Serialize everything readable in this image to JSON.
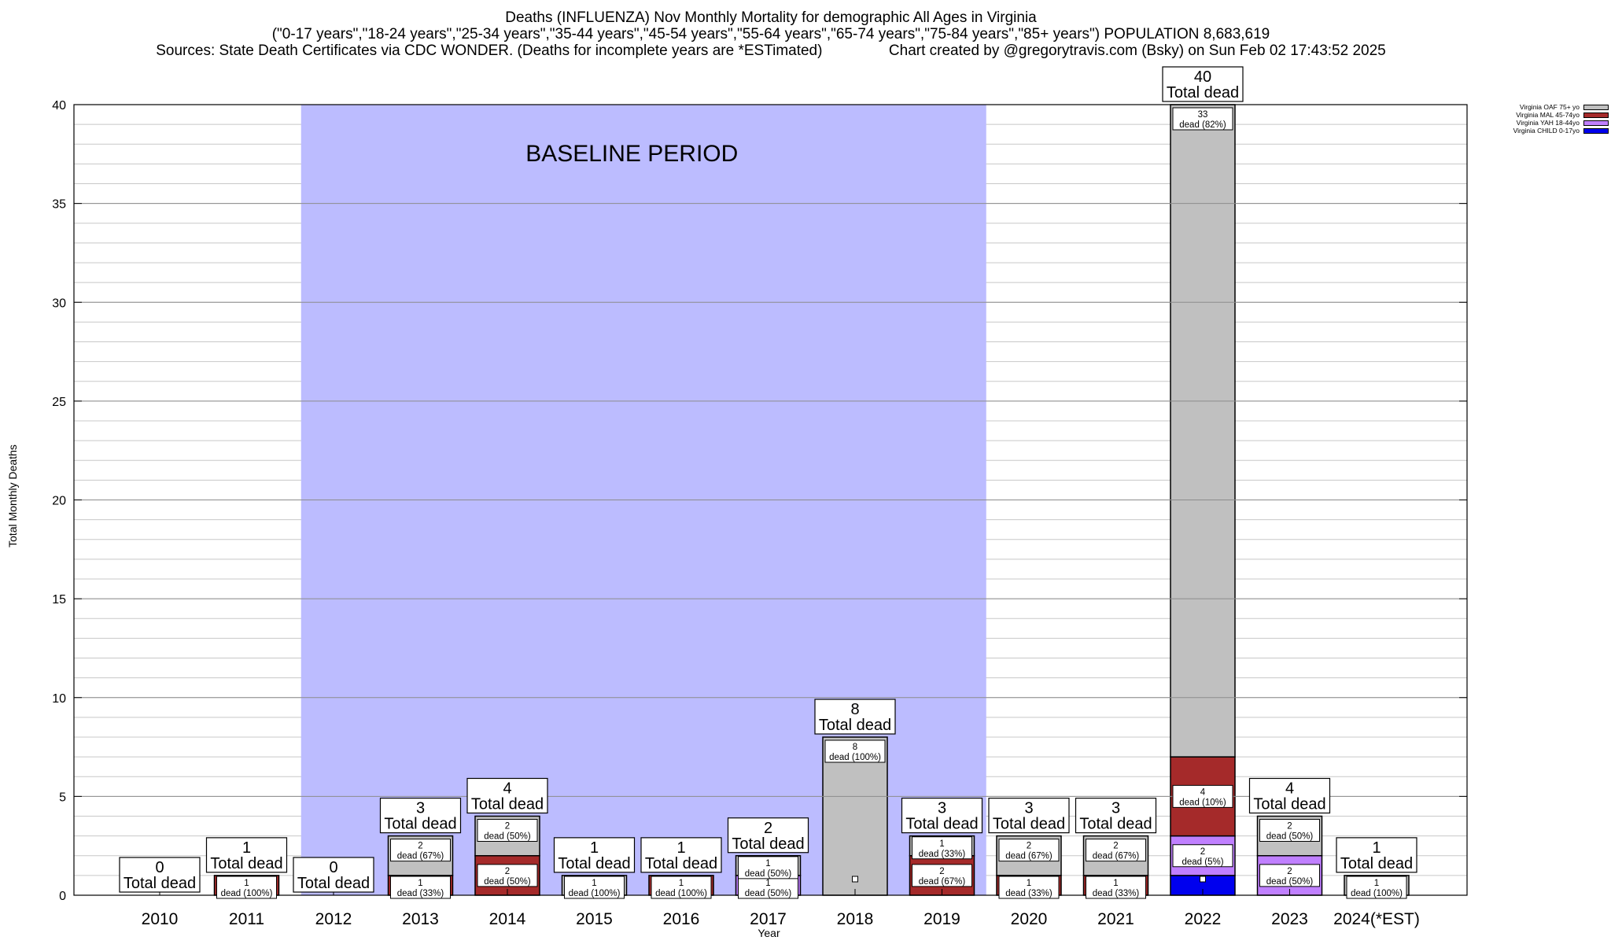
{
  "header": {
    "title": "Deaths (INFLUENZA) Nov Monthly Mortality for demographic All Ages in Virginia",
    "subtitle": "(\"0-17 years\",\"18-24 years\",\"25-34 years\",\"35-44 years\",\"45-54 years\",\"55-64 years\",\"65-74 years\",\"75-84 years\",\"85+ years\") POPULATION 8,683,619",
    "sources": "Sources: State Death Certificates via CDC WONDER. (Deaths for incomplete years are *ESTimated)                Chart created by @gregorytravis.com (Bsky) on Sun Feb 02 17:43:52 2025"
  },
  "colors": {
    "baseline": "#bcbcff",
    "OAF": "#c0c0c0",
    "MAL": "#a52a2a",
    "YAH": "#c080ff",
    "CHILD": "#0000ee"
  },
  "legend": [
    {
      "label": "Virginia OAF 75+ yo",
      "color": "#c0c0c0"
    },
    {
      "label": "Virginia MAL 45-74yo",
      "color": "#a52a2a"
    },
    {
      "label": "Virginia YAH 18-44yo",
      "color": "#c080ff"
    },
    {
      "label": "Virginia CHILD 0-17yo",
      "color": "#0000ee"
    }
  ],
  "chart_data": {
    "type": "bar",
    "stacked": true,
    "title": "Deaths (INFLUENZA) Nov Monthly Mortality for demographic All Ages in Virginia",
    "xlabel": "Year",
    "ylabel": "Total Monthly Deaths",
    "ylim": [
      0,
      40
    ],
    "yticks": [
      0,
      5,
      10,
      15,
      20,
      25,
      30,
      35,
      40
    ],
    "grid": true,
    "legend_position": "top-right",
    "baseline_label": "BASELINE PERIOD",
    "baseline_range": [
      "2012",
      "2019"
    ],
    "total_label": "Total dead",
    "categories": [
      "2010",
      "2011",
      "2012",
      "2013",
      "2014",
      "2015",
      "2016",
      "2017",
      "2018",
      "2019",
      "2020",
      "2021",
      "2022",
      "2023",
      "2024(*EST)"
    ],
    "totals": [
      0,
      1,
      0,
      3,
      4,
      1,
      1,
      2,
      8,
      3,
      3,
      3,
      40,
      4,
      1
    ],
    "series": [
      {
        "name": "Virginia CHILD 0-17yo",
        "key": "CHILD",
        "values": [
          0,
          0,
          0,
          0,
          0,
          0,
          0,
          0,
          0,
          0,
          0,
          0,
          1,
          0,
          0
        ]
      },
      {
        "name": "Virginia YAH 18-44yo",
        "key": "YAH",
        "values": [
          0,
          0,
          0,
          0,
          0,
          0,
          0,
          1,
          0,
          0,
          0,
          0,
          2,
          2,
          0
        ]
      },
      {
        "name": "Virginia MAL 45-74yo",
        "key": "MAL",
        "values": [
          0,
          1,
          0,
          1,
          2,
          0,
          1,
          0,
          0,
          2,
          1,
          1,
          4,
          0,
          0
        ]
      },
      {
        "name": "Virginia OAF 75+ yo",
        "key": "OAF",
        "values": [
          0,
          0,
          0,
          2,
          2,
          1,
          0,
          1,
          8,
          1,
          2,
          2,
          33,
          2,
          1
        ]
      }
    ],
    "segment_labels": [
      [],
      [
        {
          "series": "MAL",
          "count": "1",
          "pct": "dead (100%)"
        }
      ],
      [],
      [
        {
          "series": "MAL",
          "count": "1",
          "pct": "dead (33%)"
        },
        {
          "series": "OAF",
          "count": "2",
          "pct": "dead (67%)"
        }
      ],
      [
        {
          "series": "MAL",
          "count": "2",
          "pct": "dead (50%)"
        },
        {
          "series": "OAF",
          "count": "2",
          "pct": "dead (50%)"
        }
      ],
      [
        {
          "series": "OAF",
          "count": "1",
          "pct": "dead (100%)"
        }
      ],
      [
        {
          "series": "MAL",
          "count": "1",
          "pct": "dead (100%)"
        }
      ],
      [
        {
          "series": "YAH",
          "count": "1",
          "pct": "dead (50%)"
        },
        {
          "series": "OAF",
          "count": "1",
          "pct": "dead (50%)"
        }
      ],
      [
        {
          "series": "OAF",
          "count": "8",
          "pct": "dead (100%)"
        }
      ],
      [
        {
          "series": "MAL",
          "count": "2",
          "pct": "dead (67%)"
        },
        {
          "series": "OAF",
          "count": "1",
          "pct": "dead (33%)"
        }
      ],
      [
        {
          "series": "MAL",
          "count": "1",
          "pct": "dead (33%)"
        },
        {
          "series": "OAF",
          "count": "2",
          "pct": "dead (67%)"
        }
      ],
      [
        {
          "series": "MAL",
          "count": "1",
          "pct": "dead (33%)"
        },
        {
          "series": "OAF",
          "count": "2",
          "pct": "dead (67%)"
        }
      ],
      [
        {
          "series": "YAH",
          "count": "2",
          "pct": "dead (5%)"
        },
        {
          "series": "MAL",
          "count": "4",
          "pct": "dead (10%)"
        },
        {
          "series": "OAF",
          "count": "33",
          "pct": "dead (82%)"
        }
      ],
      [
        {
          "series": "YAH",
          "count": "2",
          "pct": "dead (50%)"
        },
        {
          "series": "OAF",
          "count": "2",
          "pct": "dead (50%)"
        }
      ],
      [
        {
          "series": "OAF",
          "count": "1",
          "pct": "dead (100%)"
        }
      ]
    ]
  }
}
